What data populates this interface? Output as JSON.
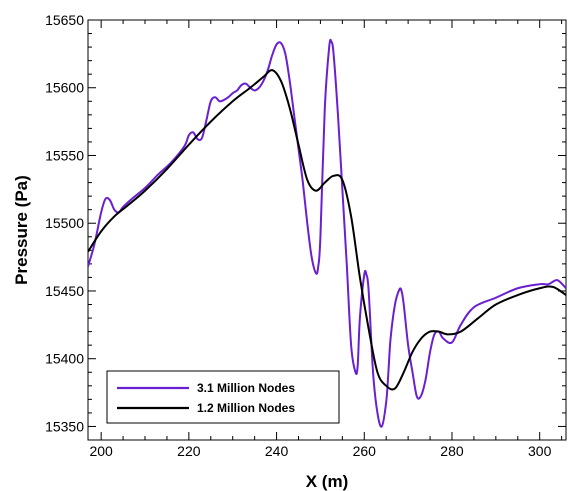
{
  "chart_data": {
    "type": "line",
    "xlabel": "X (m)",
    "ylabel": "Pressure (Pa)",
    "xlim": [
      197,
      306
    ],
    "ylim": [
      15340,
      15650
    ],
    "xticks": [
      200,
      220,
      240,
      260,
      280,
      300
    ],
    "yticks": [
      15350,
      15400,
      15450,
      15500,
      15550,
      15600,
      15650
    ],
    "grid": false,
    "legend_position": "bottom-left",
    "series": [
      {
        "name": "3.1 Million Nodes",
        "color": "#6a1fd0",
        "x": [
          197,
          198.5,
          200,
          201,
          202,
          203,
          204,
          205,
          207,
          210,
          213,
          216,
          219,
          220,
          221,
          222,
          223,
          224,
          225,
          226,
          227,
          228,
          229,
          230,
          231,
          232,
          233,
          234,
          235,
          236,
          237,
          238,
          239,
          240,
          241,
          242,
          243,
          244,
          245,
          246,
          247,
          248,
          249,
          249.5,
          250,
          251,
          252,
          252.5,
          253,
          254,
          255,
          256,
          257,
          258,
          258.5,
          259,
          260,
          260.5,
          261,
          262,
          263,
          264,
          265,
          265.5,
          266,
          267,
          268,
          268.5,
          269,
          270,
          271,
          272,
          273,
          274,
          275,
          276,
          277,
          278,
          280,
          282,
          285,
          290,
          295,
          300,
          302,
          304,
          306
        ],
        "y": [
          15468,
          15485,
          15508,
          15518,
          15517,
          15510,
          15508,
          15512,
          15518,
          15526,
          15536,
          15545,
          15557,
          15565,
          15567,
          15562,
          15563,
          15576,
          15590,
          15593,
          15590,
          15591,
          15593,
          15596,
          15598,
          15602,
          15603,
          15600,
          15598,
          15600,
          15605,
          15613,
          15624,
          15632,
          15633,
          15625,
          15605,
          15580,
          15555,
          15530,
          15500,
          15475,
          15463,
          15468,
          15490,
          15585,
          15630,
          15634,
          15625,
          15580,
          15525,
          15470,
          15410,
          15390,
          15395,
          15430,
          15462,
          15462,
          15450,
          15390,
          15360,
          15350,
          15368,
          15390,
          15415,
          15440,
          15451,
          15450,
          15440,
          15410,
          15390,
          15372,
          15373,
          15385,
          15405,
          15418,
          15420,
          15415,
          15412,
          15425,
          15438,
          15445,
          15452,
          15455,
          15455,
          15458,
          15452
        ]
      },
      {
        "name": "1.2 Million Nodes",
        "color": "#000000",
        "x": [
          197,
          200,
          203,
          206,
          210,
          215,
          220,
          225,
          230,
          234,
          237,
          239,
          241,
          243,
          245,
          247,
          249,
          251,
          253,
          255,
          257,
          259,
          261,
          263,
          265,
          267,
          269,
          271,
          273,
          275,
          277,
          279,
          282,
          286,
          290,
          295,
          300,
          303,
          306
        ],
        "y": [
          15479,
          15494,
          15505,
          15513,
          15524,
          15540,
          15558,
          15575,
          15590,
          15600,
          15608,
          15613,
          15605,
          15585,
          15558,
          15532,
          15524,
          15530,
          15535,
          15532,
          15505,
          15460,
          15422,
          15390,
          15380,
          15378,
          15390,
          15405,
          15415,
          15420,
          15420,
          15418,
          15420,
          15430,
          15440,
          15447,
          15452,
          15453,
          15447
        ]
      }
    ]
  }
}
